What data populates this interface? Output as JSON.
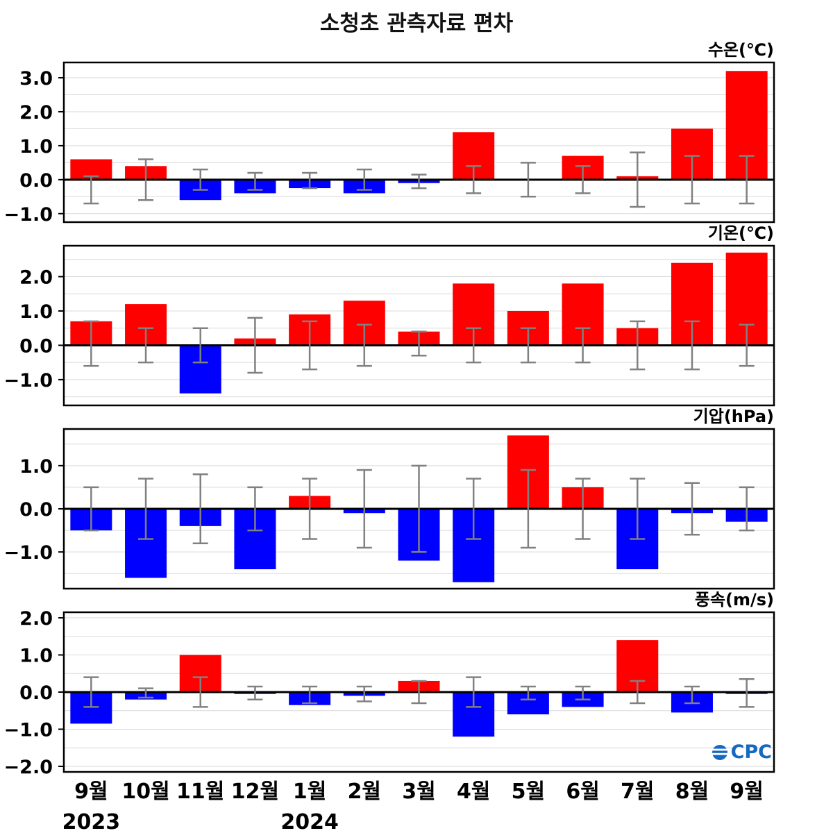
{
  "title": "소청초 관측자료 편차",
  "logo": {
    "prefix_icon": "striped-globe-o-icon",
    "text": "CPC",
    "color": "#1668c0"
  },
  "colors": {
    "positive": "#ff0000",
    "negative": "#0000ff",
    "error_bar": "#808080",
    "grid": "#d9d9d9",
    "zero_line": "#000000",
    "border": "#000000",
    "text": "#000000"
  },
  "x_axis": {
    "categories": [
      "9월",
      "10월",
      "11월",
      "12월",
      "1월",
      "2월",
      "3월",
      "4월",
      "5월",
      "6월",
      "7월",
      "8월",
      "9월"
    ],
    "year_labels": [
      {
        "label": "2023",
        "slot": 0
      },
      {
        "label": "2024",
        "slot": 4
      }
    ]
  },
  "chart_data": [
    {
      "type": "bar",
      "title": "수온(℃)",
      "categories": [
        "9월",
        "10월",
        "11월",
        "12월",
        "1월",
        "2월",
        "3월",
        "4월",
        "5월",
        "6월",
        "7월",
        "8월",
        "9월"
      ],
      "ylim": [
        -1.25,
        3.45
      ],
      "yticks": [
        3.0,
        2.0,
        1.0,
        0.0,
        -1.0
      ],
      "values": [
        0.6,
        0.4,
        -0.6,
        -0.4,
        -0.25,
        -0.4,
        -0.1,
        1.4,
        0.02,
        0.7,
        0.1,
        1.5,
        3.2
      ],
      "err_low": [
        -0.7,
        -0.6,
        -0.3,
        -0.3,
        -0.25,
        -0.3,
        -0.25,
        -0.4,
        -0.5,
        -0.4,
        -0.8,
        -0.7,
        -0.7
      ],
      "err_high": [
        0.1,
        0.6,
        0.3,
        0.2,
        0.2,
        0.3,
        0.15,
        0.4,
        0.5,
        0.4,
        0.8,
        0.7,
        0.7
      ]
    },
    {
      "type": "bar",
      "title": "기온(℃)",
      "categories": [
        "9월",
        "10월",
        "11월",
        "12월",
        "1월",
        "2월",
        "3월",
        "4월",
        "5월",
        "6월",
        "7월",
        "8월",
        "9월"
      ],
      "ylim": [
        -1.75,
        2.9
      ],
      "yticks": [
        2.0,
        1.0,
        0.0,
        -1.0
      ],
      "values": [
        0.7,
        1.2,
        -1.4,
        0.2,
        0.9,
        1.3,
        0.4,
        1.8,
        1.0,
        1.8,
        0.5,
        2.4,
        2.7
      ],
      "err_low": [
        -0.6,
        -0.5,
        -0.5,
        -0.8,
        -0.7,
        -0.6,
        -0.3,
        -0.5,
        -0.5,
        -0.5,
        -0.7,
        -0.7,
        -0.6
      ],
      "err_high": [
        0.7,
        0.5,
        0.5,
        0.8,
        0.7,
        0.6,
        0.4,
        0.5,
        0.5,
        0.5,
        0.7,
        0.7,
        0.6
      ]
    },
    {
      "type": "bar",
      "title": "기압(hPa)",
      "categories": [
        "9월",
        "10월",
        "11월",
        "12월",
        "1월",
        "2월",
        "3월",
        "4월",
        "5월",
        "6월",
        "7월",
        "8월",
        "9월"
      ],
      "ylim": [
        -1.85,
        1.85
      ],
      "yticks": [
        1.0,
        0.0,
        -1.0
      ],
      "values": [
        -0.5,
        -1.6,
        -0.4,
        -1.4,
        0.3,
        -0.1,
        -1.2,
        -1.7,
        1.7,
        0.5,
        -1.4,
        -0.1,
        -0.3
      ],
      "err_low": [
        -0.5,
        -0.7,
        -0.8,
        -0.5,
        -0.7,
        -0.9,
        -1.0,
        -0.7,
        -0.9,
        -0.7,
        -0.7,
        -0.6,
        -0.5
      ],
      "err_high": [
        0.5,
        0.7,
        0.8,
        0.5,
        0.7,
        0.9,
        1.0,
        0.7,
        0.9,
        0.7,
        0.7,
        0.6,
        0.5
      ]
    },
    {
      "type": "bar",
      "title": "풍속(m/s)",
      "categories": [
        "9월",
        "10월",
        "11월",
        "12월",
        "1월",
        "2월",
        "3월",
        "4월",
        "5월",
        "6월",
        "7월",
        "8월",
        "9월"
      ],
      "ylim": [
        -2.15,
        2.15
      ],
      "yticks": [
        2.0,
        1.0,
        0.0,
        -1.0,
        -2.0
      ],
      "values": [
        -0.85,
        -0.2,
        1.0,
        -0.05,
        -0.35,
        -0.1,
        0.3,
        -1.2,
        -0.6,
        -0.4,
        1.4,
        -0.55,
        -0.05
      ],
      "err_low": [
        -0.4,
        -0.15,
        -0.4,
        -0.2,
        -0.3,
        -0.25,
        -0.3,
        -0.4,
        -0.2,
        -0.2,
        -0.3,
        -0.3,
        -0.4
      ],
      "err_high": [
        0.4,
        0.1,
        0.4,
        0.15,
        0.15,
        0.15,
        0.3,
        0.4,
        0.15,
        0.15,
        0.3,
        0.15,
        0.35
      ]
    }
  ]
}
